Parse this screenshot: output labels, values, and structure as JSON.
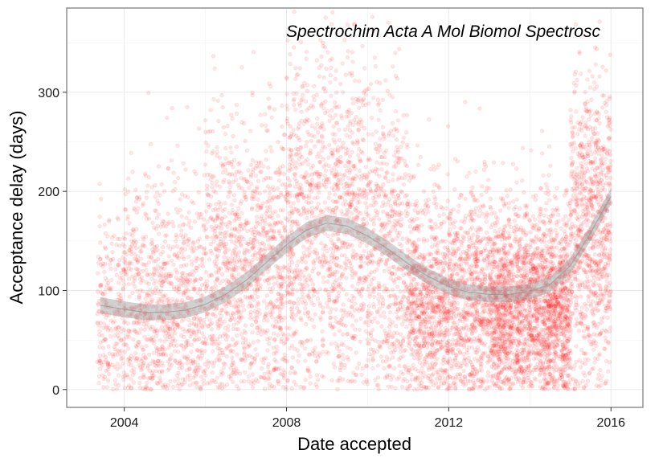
{
  "chart_data": {
    "type": "scatter",
    "title": "Spectrochim Acta A Mol Biomol Spectrosc",
    "xlabel": "Date accepted",
    "ylabel": "Acceptance delay (days)",
    "xlim": [
      "2002-08-01",
      "2016-10-15"
    ],
    "ylim": [
      -18,
      385
    ],
    "x_ticks": [
      "2004-01-01",
      "2008-01-01",
      "2012-01-01",
      "2016-01-01"
    ],
    "x_tick_labels": [
      "2004",
      "2008",
      "2012",
      "2016"
    ],
    "y_ticks": [
      0,
      100,
      200,
      300
    ],
    "y_tick_labels": [
      "0",
      "100",
      "200",
      "300"
    ],
    "grid": true,
    "legend": "none",
    "point_color": "#ff0000",
    "point_alpha": 0.1,
    "smooth_color": "#999999",
    "smooth": {
      "x": [
        "2003-06-01",
        "2004-01-01",
        "2004-07-01",
        "2005-01-01",
        "2005-07-01",
        "2006-01-01",
        "2006-07-01",
        "2007-01-01",
        "2007-07-01",
        "2008-01-01",
        "2008-07-01",
        "2009-01-01",
        "2009-07-01",
        "2010-01-01",
        "2010-07-01",
        "2011-01-01",
        "2011-07-01",
        "2012-01-01",
        "2012-07-01",
        "2013-01-01",
        "2013-07-01",
        "2014-01-01",
        "2014-07-01",
        "2015-01-01",
        "2015-07-01",
        "2016-01-01"
      ],
      "y": [
        85,
        81,
        78,
        78,
        80,
        86,
        96,
        110,
        128,
        146,
        161,
        168,
        165,
        155,
        142,
        127,
        114,
        104,
        98,
        96,
        96,
        99,
        106,
        125,
        158,
        195
      ]
    },
    "scatter_clusters": [
      {
        "x_from": "2003-05-01",
        "x_to": "2004-01-01",
        "y_mean": 75,
        "y_sd": 55,
        "count": 220
      },
      {
        "x_from": "2004-01-01",
        "x_to": "2006-01-01",
        "y_mean": 85,
        "y_sd": 65,
        "count": 900
      },
      {
        "x_from": "2006-01-01",
        "x_to": "2008-01-01",
        "y_mean": 120,
        "y_sd": 75,
        "count": 1100
      },
      {
        "x_from": "2008-01-01",
        "x_to": "2010-01-01",
        "y_mean": 165,
        "y_sd": 85,
        "count": 1200
      },
      {
        "x_from": "2010-01-01",
        "x_to": "2011-01-01",
        "y_mean": 140,
        "y_sd": 80,
        "count": 550
      },
      {
        "x_from": "2011-01-01",
        "x_to": "2013-01-01",
        "y_mean": 90,
        "y_sd": 55,
        "count": 1500
      },
      {
        "x_from": "2013-01-01",
        "x_to": "2015-01-01",
        "y_mean": 85,
        "y_sd": 50,
        "count": 2200
      },
      {
        "x_from": "2015-01-01",
        "x_to": "2016-01-01",
        "y_mean": 160,
        "y_sd": 80,
        "count": 900
      }
    ]
  }
}
